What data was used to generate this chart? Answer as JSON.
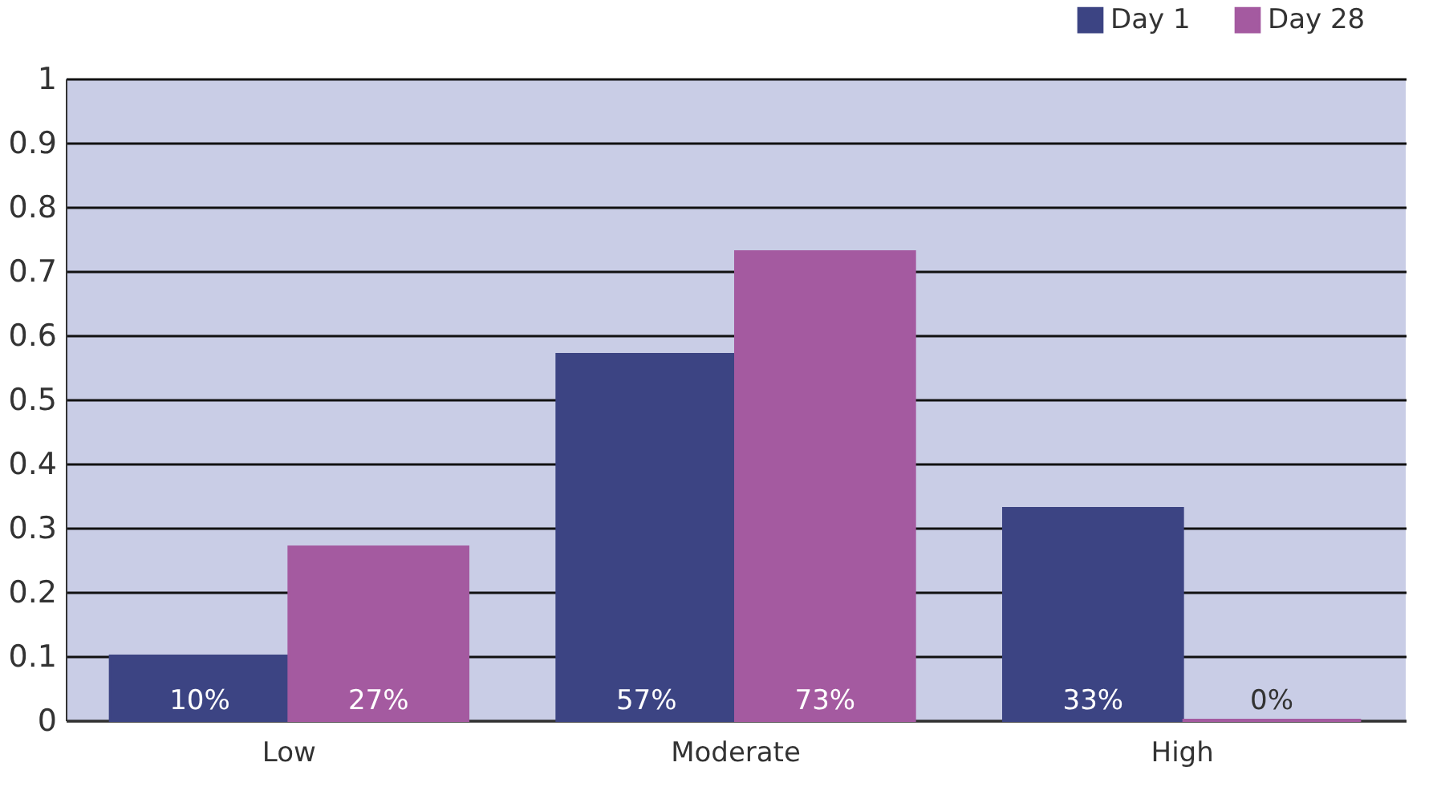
{
  "chart_data": {
    "type": "bar",
    "categories": [
      "Low",
      "Moderate",
      "High"
    ],
    "series": [
      {
        "name": "Day 1",
        "color": "#3c4483",
        "values": [
          0.1,
          0.57,
          0.33
        ],
        "value_labels": [
          "10%",
          "57%",
          "33%"
        ]
      },
      {
        "name": "Day 28",
        "color": "#a45aa0",
        "values": [
          0.27,
          0.73,
          0.0
        ],
        "value_labels": [
          "27%",
          "73%",
          "0%"
        ]
      }
    ],
    "ylim": [
      0,
      1
    ],
    "yticks": [
      0,
      0.1,
      0.2,
      0.3,
      0.4,
      0.5,
      0.6,
      0.7,
      0.8,
      0.9,
      1
    ],
    "grid": "y",
    "legend": "top right"
  }
}
